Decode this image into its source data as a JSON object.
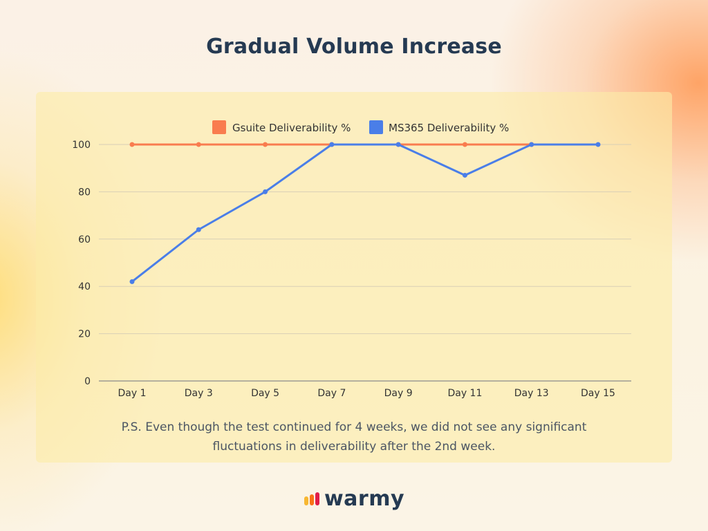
{
  "title": "Gradual Volume Increase",
  "footnote": {
    "line1": "P.S. Even though the test continued for 4 weeks, we did not see any significant",
    "line2": "fluctuations in deliverability after the 2nd week."
  },
  "brand": {
    "name": "warmy",
    "logo_icon": "warmy-logo-bars-icon",
    "logo_colors": [
      "#f7b731",
      "#f97316",
      "#e11d48"
    ]
  },
  "chart_data": {
    "type": "line",
    "title": "",
    "xlabel": "",
    "ylabel": "",
    "categories": [
      "Day 1",
      "Day 3",
      "Day 5",
      "Day 7",
      "Day 9",
      "Day 11",
      "Day 13",
      "Day 15"
    ],
    "ylim": [
      0,
      100
    ],
    "yticks": [
      0,
      20,
      40,
      60,
      80,
      100
    ],
    "grid": true,
    "legend_position": "top-center",
    "series": [
      {
        "name": "Gsuite Deliverability %",
        "color": "#f97c4f",
        "values": [
          100,
          100,
          100,
          100,
          100,
          100,
          100,
          null
        ]
      },
      {
        "name": "MS365 Deliverability %",
        "color": "#4a7ee8",
        "values": [
          42,
          64,
          80,
          100,
          100,
          87,
          100,
          100
        ]
      }
    ]
  }
}
